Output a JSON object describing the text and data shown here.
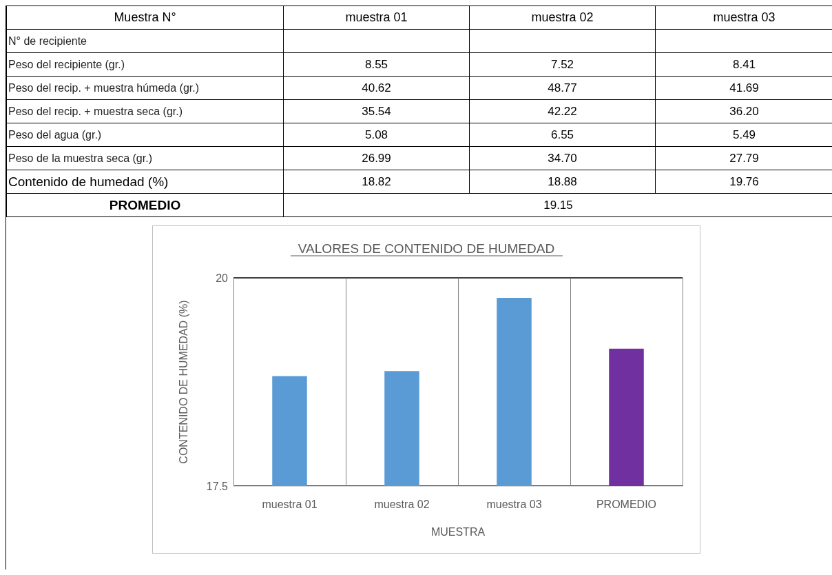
{
  "chart_data": [
    {
      "type": "other",
      "categories": [
        "Muestra N°",
        "muestra 01",
        "muestra 02",
        "muestra 03"
      ],
      "y_categories": [
        "N° de recipiente",
        "Peso del recipiente (gr.)",
        "Peso del recip. + muestra húmeda (gr.)",
        "Peso del recip. + muestra seca (gr.)",
        "Peso del agua (gr.)",
        "Peso de la muestra seca (gr.)",
        "Contenido de humedad (%)",
        "PROMEDIO"
      ],
      "cell_labels": [
        [
          null,
          null,
          null
        ],
        [
          "8.55",
          "7.52",
          "8.41"
        ],
        [
          "40.62",
          "48.77",
          "41.69"
        ],
        [
          "35.54",
          "42.22",
          "36.20"
        ],
        [
          "5.08",
          "6.55",
          "5.49"
        ],
        [
          "26.99",
          "34.70",
          "27.79"
        ],
        [
          "18.82",
          "18.88",
          "19.76"
        ],
        [
          "19.15"
        ]
      ]
    },
    {
      "type": "bar",
      "title": "VALORES DE CONTENIDO DE HUMEDAD",
      "xlabel": "MUESTRA",
      "ylabel": "CONTENIDO DE HUMEDAD (%)",
      "categories": [
        "muestra 01",
        "muestra 02",
        "muestra 03",
        "PROMEDIO"
      ],
      "values": [
        18.82,
        18.88,
        19.76,
        19.15
      ],
      "colors": [
        "#5b9bd5",
        "#5b9bd5",
        "#5b9bd5",
        "#7030a0"
      ],
      "ylim": [
        17.5,
        20
      ],
      "yticks": [
        17.5,
        20
      ],
      "grid": true
    }
  ]
}
